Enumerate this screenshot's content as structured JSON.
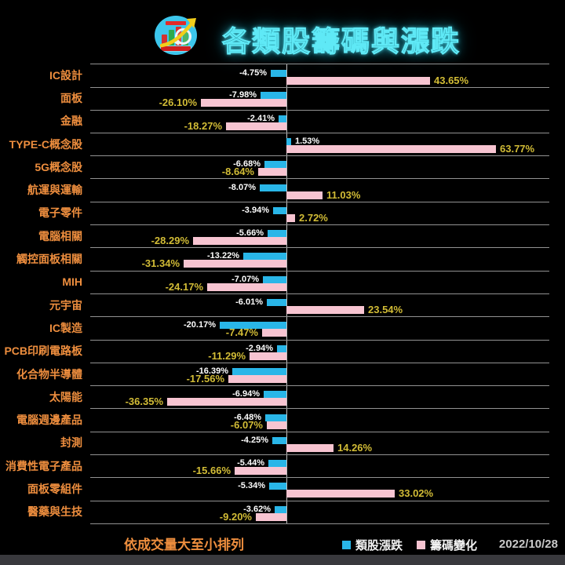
{
  "header": {
    "title": "各類股籌碼與漲跌"
  },
  "colors": {
    "background": "#000000",
    "title_fill": "#15717f",
    "title_glow": "#5fe9f6",
    "category_label": "#ee8e3e",
    "updown_series": "#29b6e8",
    "chips_series": "#f7c4d1",
    "updown_value_label": "#ffffff",
    "chips_value_label": "#d2bc36",
    "gridline": "#929292"
  },
  "chart_data": {
    "type": "bar",
    "orientation": "horizontal",
    "title": "各類股籌碼與漲跌",
    "categories": [
      "IC設計",
      "面板",
      "金融",
      "TYPE-C概念股",
      "5G概念股",
      "航運與運輸",
      "電子零件",
      "電腦相關",
      "觸控面板相關",
      "MIH",
      "元宇宙",
      "IC製造",
      "PCB印刷電路板",
      "化合物半導體",
      "太陽能",
      "電腦週邊產品",
      "封測",
      "消費性電子產品",
      "面板零組件",
      "醫藥與生技"
    ],
    "series": [
      {
        "name": "類股漲跌",
        "color": "#29b6e8",
        "values": [
          -4.75,
          -7.98,
          -2.41,
          1.53,
          -6.68,
          -8.07,
          -3.94,
          -5.66,
          -13.22,
          -7.07,
          -6.01,
          -20.17,
          -2.94,
          -16.39,
          -6.94,
          -6.48,
          -4.25,
          -5.44,
          -5.34,
          -3.62
        ]
      },
      {
        "name": "籌碼變化",
        "color": "#f7c4d1",
        "values": [
          43.65,
          -26.1,
          -18.27,
          63.77,
          -8.64,
          11.03,
          2.72,
          -28.29,
          -31.34,
          -24.17,
          23.54,
          -7.47,
          -11.29,
          -17.56,
          -36.35,
          -6.07,
          14.26,
          -15.66,
          33.02,
          -9.2
        ]
      }
    ],
    "value_suffix": "%",
    "xlim": [
      -60,
      80
    ],
    "grid": "horizontal-row-separators",
    "legend_position": "bottom"
  },
  "footer": {
    "sort_note": "依成交量大至小排列",
    "date": "2022/10/28"
  }
}
